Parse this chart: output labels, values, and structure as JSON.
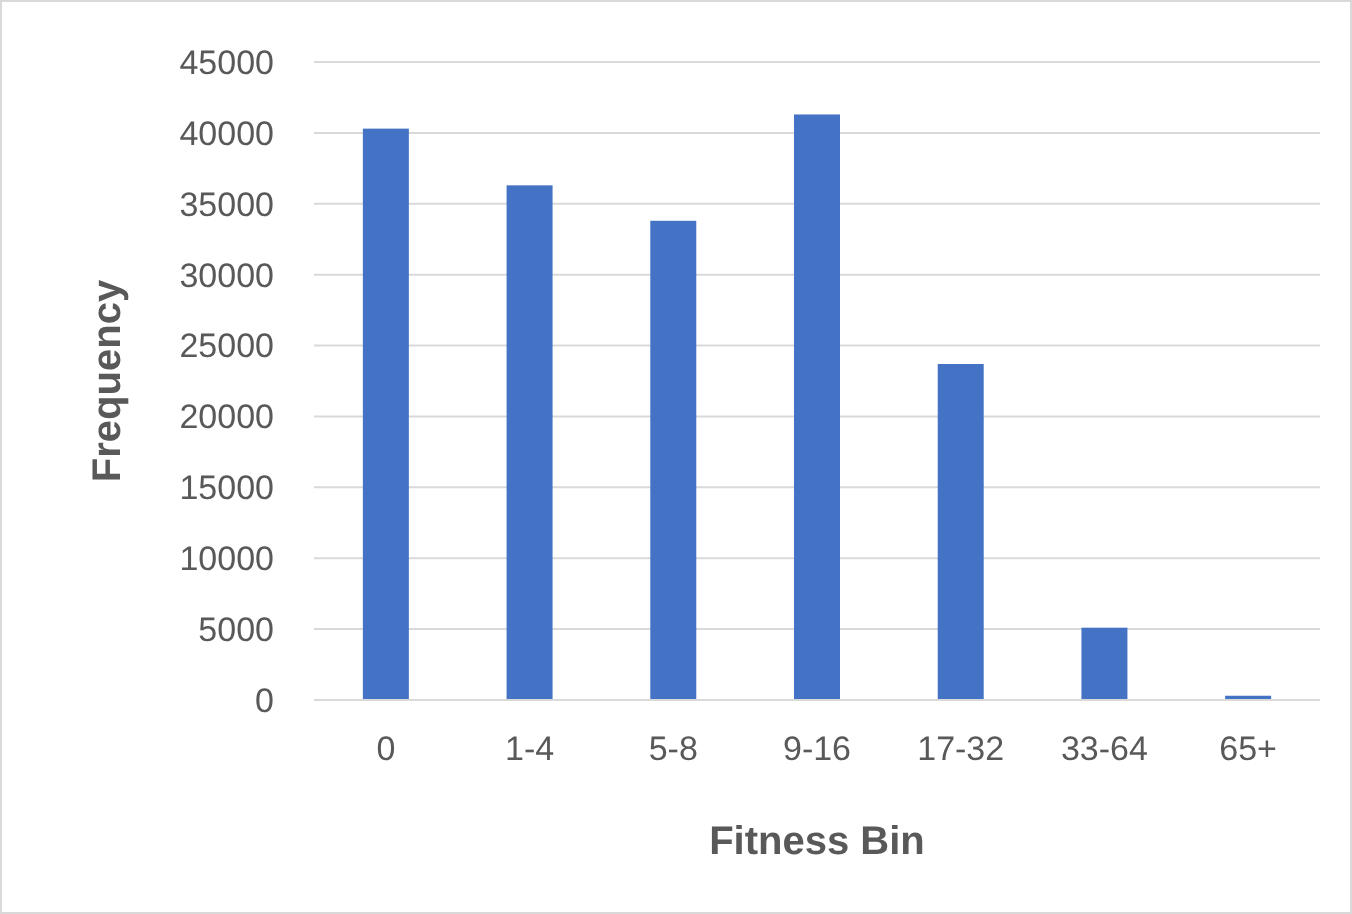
{
  "chart_data": {
    "type": "bar",
    "xlabel": "Fitness Bin",
    "ylabel": "Frequency",
    "categories": [
      "0",
      "1-4",
      "5-8",
      "9-16",
      "17-32",
      "33-64",
      "65+"
    ],
    "values": [
      40300,
      36300,
      33800,
      41300,
      23700,
      5100,
      300
    ],
    "color": "#4472c4",
    "ylim": [
      0,
      45000
    ],
    "yticks": [
      0,
      5000,
      10000,
      15000,
      20000,
      25000,
      30000,
      35000,
      40000,
      45000
    ],
    "grid": "y"
  }
}
